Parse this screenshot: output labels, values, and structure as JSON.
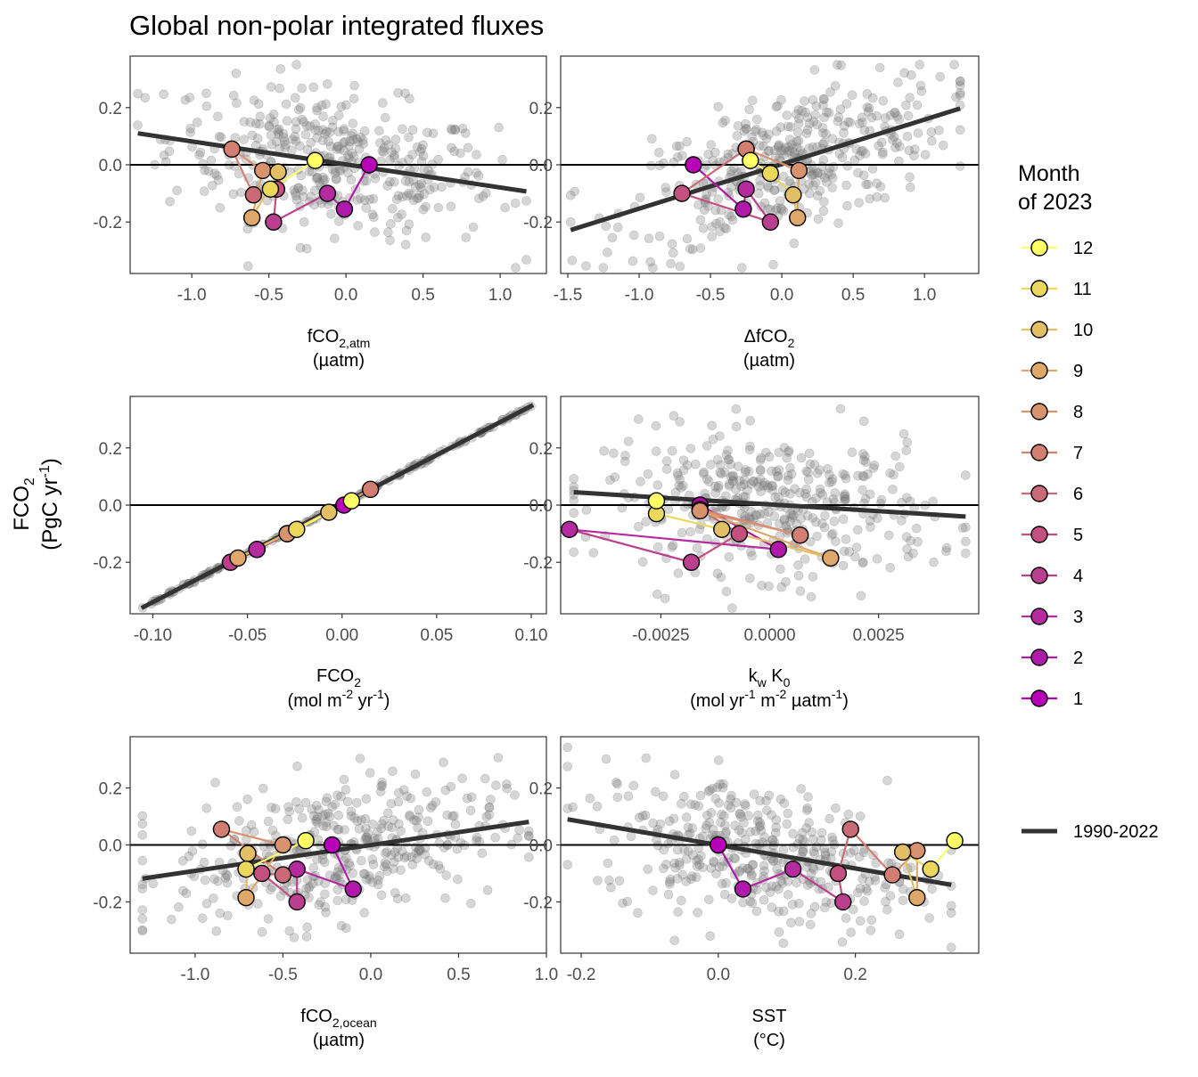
{
  "title": "Global non-polar integrated fluxes",
  "y_axis": {
    "label_line1": "FCO",
    "label_sub": "2",
    "label_line2a": "(PgC yr",
    "label_sup": "-1",
    "label_line2b": ")"
  },
  "legend": {
    "title_line1": "Month",
    "title_line2": "of 2023",
    "months": [
      "12",
      "11",
      "10",
      "9",
      "8",
      "7",
      "6",
      "5",
      "4",
      "3",
      "2",
      "1"
    ],
    "month_colors": {
      "1": "#B700B7",
      "2": "#B01AAB",
      "3": "#B52A9E",
      "4": "#BB3F8F",
      "5": "#C4507F",
      "6": "#CB6A77",
      "7": "#D27F72",
      "8": "#D9926E",
      "9": "#DFA76A",
      "10": "#E2BE64",
      "11": "#EAD75C",
      "12": "#FFFF66"
    },
    "trend_label": "1990-2022",
    "trend_color": "#333333",
    "history_point_color": "#9a9a9a"
  },
  "chart_data": [
    {
      "type": "scatter",
      "panel": "fco2_atm",
      "xlabel_main": "fCO",
      "xlabel_sub": "2,atm",
      "xlabel_unit": "(µatm)",
      "xlim": [
        -1.4,
        1.3
      ],
      "ylim": [
        -0.38,
        0.38
      ],
      "xticks": [
        -1.0,
        -0.5,
        0.0,
        0.5,
        1.0
      ],
      "xtick_labels": [
        "-1.0",
        "-0.5",
        "0.0",
        "0.5",
        "1.0"
      ],
      "yticks": [
        -0.2,
        0.0,
        0.2
      ],
      "ytick_labels": [
        "-0.2",
        "0.0",
        "0.2"
      ],
      "trend": {
        "x": [
          -1.35,
          1.17
        ],
        "y": [
          0.11,
          -0.093
        ]
      },
      "months_2023": {
        "month": [
          1,
          2,
          3,
          4,
          5,
          6,
          7,
          8,
          9,
          10,
          11,
          12
        ],
        "x": [
          0.15,
          -0.01,
          -0.12,
          -0.47,
          -0.45,
          -0.6,
          -0.74,
          -0.54,
          -0.61,
          -0.44,
          -0.49,
          -0.2
        ],
        "y": [
          0.0,
          -0.155,
          -0.1,
          -0.2,
          -0.085,
          -0.105,
          0.055,
          -0.02,
          -0.185,
          -0.025,
          -0.085,
          0.015
        ]
      }
    },
    {
      "type": "scatter",
      "panel": "delta_fco2",
      "xlabel_main": "ΔfCO",
      "xlabel_sub": "2",
      "xlabel_unit": "(µatm)",
      "xlim": [
        -1.55,
        1.38
      ],
      "ylim": [
        -0.38,
        0.38
      ],
      "xticks": [
        -1.5,
        -1.0,
        -0.5,
        0.0,
        0.5,
        1.0
      ],
      "xtick_labels": [
        "-1.5",
        "-1.0",
        "-0.5",
        "0.0",
        "0.5",
        "1.0"
      ],
      "yticks": [
        -0.2,
        0.0,
        0.2
      ],
      "ytick_labels": [
        "-0.2",
        "0.0",
        "0.2"
      ],
      "trend": {
        "x": [
          -1.48,
          1.25
        ],
        "y": [
          -0.228,
          0.197
        ]
      },
      "months_2023": {
        "month": [
          1,
          2,
          3,
          4,
          5,
          6,
          7,
          8,
          9,
          10,
          11,
          12
        ],
        "x": [
          -0.62,
          -0.27,
          -0.25,
          -0.08,
          -0.7,
          -0.25,
          -0.25,
          0.12,
          0.11,
          0.08,
          -0.08,
          -0.22
        ],
        "y": [
          0.0,
          -0.155,
          -0.085,
          -0.2,
          -0.1,
          0.055,
          0.055,
          -0.02,
          -0.185,
          -0.105,
          -0.03,
          0.015
        ]
      }
    },
    {
      "type": "scatter",
      "panel": "fco2_flux_density",
      "xlabel_main": "FCO",
      "xlabel_sub": "2",
      "xlabel_unit_a": "(mol m",
      "xlabel_unit_sup1": "-2",
      "xlabel_unit_b": " yr",
      "xlabel_unit_sup2": "-1",
      "xlabel_unit_c": ")",
      "xlim": [
        -0.112,
        0.108
      ],
      "ylim": [
        -0.38,
        0.38
      ],
      "xticks": [
        -0.1,
        -0.05,
        0.0,
        0.05,
        0.1
      ],
      "xtick_labels": [
        "-0.10",
        "-0.05",
        "0.00",
        "0.05",
        "0.10"
      ],
      "yticks": [
        -0.2,
        0.0,
        0.2
      ],
      "ytick_labels": [
        "-0.2",
        "0.0",
        "0.2"
      ],
      "trend": {
        "x": [
          -0.106,
          0.101
        ],
        "y": [
          -0.36,
          0.35
        ]
      },
      "months_2023": {
        "month": [
          1,
          2,
          3,
          4,
          5,
          6,
          7,
          8,
          9,
          10,
          11,
          12
        ],
        "x": [
          0.001,
          -0.045,
          -0.045,
          -0.059,
          -0.029,
          -0.029,
          0.015,
          -0.029,
          -0.055,
          -0.007,
          -0.024,
          0.005
        ],
        "y": [
          0.0,
          -0.155,
          -0.155,
          -0.2,
          -0.1,
          -0.1,
          0.055,
          -0.1,
          -0.185,
          -0.025,
          -0.085,
          0.015
        ]
      }
    },
    {
      "type": "scatter",
      "panel": "kw_k0",
      "xlabel_main_a": "k",
      "xlabel_sub_a": "w",
      "xlabel_main_b": " K",
      "xlabel_sub_b": "0",
      "xlabel_unit_a": "(mol yr",
      "xlabel_unit_sup1": "-1",
      "xlabel_unit_b": " m",
      "xlabel_unit_sup2": "-2",
      "xlabel_unit_c": " µatm",
      "xlabel_unit_sup3": "-1",
      "xlabel_unit_d": ")",
      "xlim": [
        -0.0048,
        0.0048
      ],
      "ylim": [
        -0.38,
        0.38
      ],
      "xticks": [
        -0.0025,
        0.0,
        0.0025
      ],
      "xtick_labels": [
        "-0.0025",
        "0.0000",
        "0.0025"
      ],
      "yticks": [
        -0.2,
        0.0,
        0.2
      ],
      "ytick_labels": [
        "-0.2",
        "0.0",
        "0.2"
      ],
      "trend": {
        "x": [
          -0.0045,
          0.0045
        ],
        "y": [
          0.045,
          -0.04
        ]
      },
      "months_2023": {
        "month": [
          1,
          2,
          3,
          4,
          5,
          6,
          7,
          8,
          9,
          10,
          11,
          12
        ],
        "x": [
          -0.0016,
          0.0002,
          -0.0046,
          -0.0018,
          -0.0007,
          -0.0016,
          0.0007,
          -0.0016,
          0.0014,
          -0.0011,
          -0.0026,
          -0.0026
        ],
        "y": [
          0.0,
          -0.155,
          -0.085,
          -0.2,
          -0.1,
          -0.015,
          -0.105,
          -0.02,
          -0.185,
          -0.085,
          -0.03,
          0.015
        ]
      }
    },
    {
      "type": "scatter",
      "panel": "fco2_ocean",
      "xlabel_main": "fCO",
      "xlabel_sub": "2,ocean",
      "xlabel_unit": "(µatm)",
      "xlim": [
        -1.37,
        1.0
      ],
      "ylim": [
        -0.38,
        0.38
      ],
      "xticks": [
        -1.0,
        -0.5,
        0.0,
        0.5,
        1.0
      ],
      "xtick_labels": [
        "-1.0",
        "-0.5",
        "0.0",
        "0.5",
        "1.0"
      ],
      "yticks": [
        -0.2,
        0.0,
        0.2
      ],
      "ytick_labels": [
        "-0.2",
        "0.0",
        "0.2"
      ],
      "trend": {
        "x": [
          -1.3,
          0.9
        ],
        "y": [
          -0.118,
          0.081
        ]
      },
      "months_2023": {
        "month": [
          1,
          2,
          3,
          4,
          5,
          6,
          7,
          8,
          9,
          10,
          11,
          12
        ],
        "x": [
          -0.22,
          -0.1,
          -0.42,
          -0.42,
          -0.62,
          -0.5,
          -0.85,
          -0.5,
          -0.71,
          -0.7,
          -0.71,
          -0.37
        ],
        "y": [
          0.0,
          -0.155,
          -0.085,
          -0.2,
          -0.1,
          -0.105,
          0.055,
          0.0,
          -0.185,
          -0.03,
          -0.085,
          0.015
        ]
      }
    },
    {
      "type": "scatter",
      "panel": "sst",
      "xlabel_main": "SST",
      "xlabel_unit": "(°C)",
      "xlim": [
        -0.23,
        0.38
      ],
      "ylim": [
        -0.38,
        0.38
      ],
      "xticks": [
        -0.2,
        0.0,
        0.2
      ],
      "xtick_labels": [
        "-0.2",
        "0.0",
        "0.2"
      ],
      "yticks": [
        -0.2,
        0.0,
        0.2
      ],
      "ytick_labels": [
        "-0.2",
        "0.0",
        "0.2"
      ],
      "trend": {
        "x": [
          -0.22,
          0.34
        ],
        "y": [
          0.09,
          -0.14
        ]
      },
      "months_2023": {
        "month": [
          1,
          2,
          3,
          4,
          5,
          6,
          7,
          8,
          9,
          10,
          11,
          12
        ],
        "x": [
          0.0,
          0.036,
          0.109,
          0.182,
          0.175,
          0.193,
          0.254,
          0.29,
          0.29,
          0.269,
          0.31,
          0.345
        ],
        "y": [
          0.0,
          -0.155,
          -0.085,
          -0.2,
          -0.1,
          0.055,
          -0.105,
          -0.02,
          -0.185,
          -0.025,
          -0.085,
          0.015
        ]
      }
    }
  ]
}
